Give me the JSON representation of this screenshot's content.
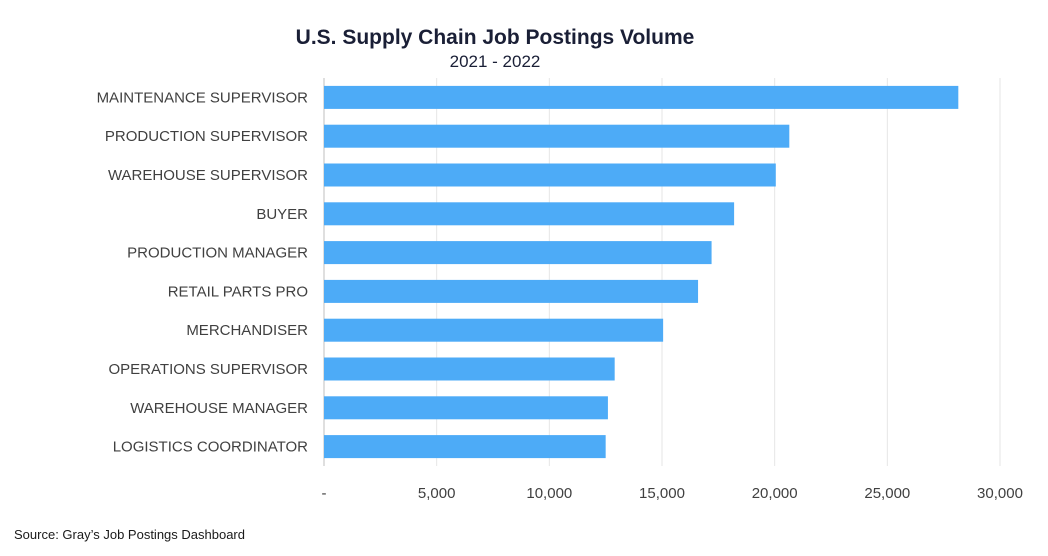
{
  "chart_data": {
    "type": "bar",
    "orientation": "horizontal",
    "title": "U.S. Supply Chain Job Postings Volume",
    "subtitle": "2021 - 2022",
    "categories": [
      "MAINTENANCE SUPERVISOR",
      "PRODUCTION SUPERVISOR",
      "WAREHOUSE SUPERVISOR",
      "BUYER",
      "PRODUCTION MANAGER",
      "RETAIL PARTS PRO",
      "MERCHANDISER",
      "OPERATIONS SUPERVISOR",
      "WAREHOUSE MANAGER",
      "LOGISTICS COORDINATOR"
    ],
    "values": [
      28150,
      20650,
      20050,
      18200,
      17200,
      16600,
      15050,
      12900,
      12600,
      12500
    ],
    "xlim": [
      0,
      30000
    ],
    "xticks": [
      0,
      5000,
      10000,
      15000,
      20000,
      25000,
      30000
    ],
    "xtick_labels": [
      "-",
      "5,000",
      "10,000",
      "15,000",
      "20,000",
      "25,000",
      "30,000"
    ],
    "xlabel": "",
    "ylabel": "",
    "grid": true,
    "legend": "none",
    "bar_color": "#4dabf7",
    "source_note": "Source:  Gray’s Job Postings Dashboard"
  }
}
